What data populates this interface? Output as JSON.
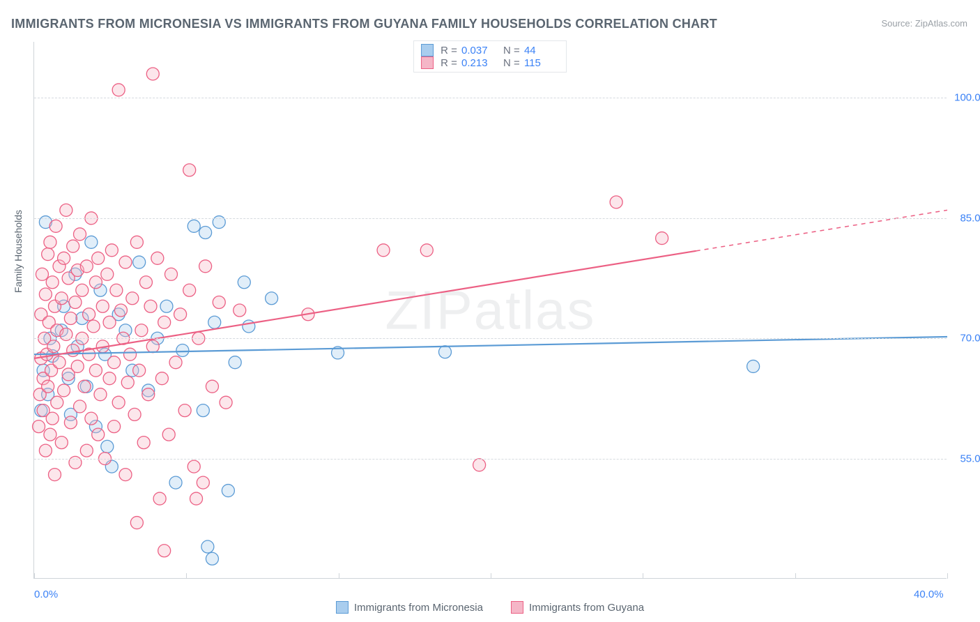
{
  "title": "IMMIGRANTS FROM MICRONESIA VS IMMIGRANTS FROM GUYANA FAMILY HOUSEHOLDS CORRELATION CHART",
  "source": "Source: ZipAtlas.com",
  "watermark": "ZIPatlas",
  "yaxis_title": "Family Households",
  "chart": {
    "type": "scatter+regression",
    "xlim": [
      0,
      40
    ],
    "ylim": [
      40,
      107
    ],
    "xticks": [
      0,
      6.67,
      13.33,
      20,
      26.67,
      33.33,
      40
    ],
    "xlabels": {
      "0": "0.0%",
      "40": "40.0%"
    },
    "yticks": [
      55,
      70,
      85,
      100
    ],
    "ylabels": {
      "55": "55.0%",
      "70": "70.0%",
      "85": "85.0%",
      "100": "100.0%"
    },
    "grid_color": "#d5dadf",
    "background_color": "#ffffff",
    "marker_radius": 9,
    "marker_fill_opacity": 0.35,
    "marker_stroke_width": 1.3,
    "line_width": 2.2,
    "series": [
      {
        "name": "Immigrants from Micronesia",
        "color": "#5b9bd5",
        "fill": "#a9cdee",
        "R": "0.037",
        "N": "44",
        "reg_start": [
          0,
          68
        ],
        "reg_end": [
          40,
          70.2
        ],
        "reg_dash_from": 40,
        "points": [
          [
            0.3,
            61
          ],
          [
            0.4,
            66
          ],
          [
            0.5,
            84.5
          ],
          [
            0.6,
            63
          ],
          [
            0.7,
            70
          ],
          [
            0.8,
            67.8
          ],
          [
            1.2,
            71
          ],
          [
            1.3,
            74
          ],
          [
            1.5,
            65
          ],
          [
            1.6,
            60.5
          ],
          [
            1.8,
            78
          ],
          [
            1.9,
            69
          ],
          [
            2.1,
            72.5
          ],
          [
            2.3,
            64
          ],
          [
            2.5,
            82
          ],
          [
            2.7,
            59
          ],
          [
            2.9,
            76
          ],
          [
            3.1,
            68
          ],
          [
            3.4,
            54
          ],
          [
            3.7,
            73
          ],
          [
            3.2,
            56.5
          ],
          [
            4.0,
            71
          ],
          [
            4.3,
            66
          ],
          [
            4.6,
            79.5
          ],
          [
            5.0,
            63.5
          ],
          [
            5.4,
            70
          ],
          [
            5.8,
            74
          ],
          [
            6.2,
            52
          ],
          [
            6.5,
            68.5
          ],
          [
            7.0,
            84
          ],
          [
            7.4,
            61
          ],
          [
            7.5,
            83.2
          ],
          [
            7.6,
            44
          ],
          [
            7.9,
            72
          ],
          [
            8.1,
            84.5
          ],
          [
            8.5,
            51
          ],
          [
            8.8,
            67
          ],
          [
            9.2,
            77
          ],
          [
            9.4,
            71.5
          ],
          [
            10.4,
            75
          ],
          [
            13.3,
            68.2
          ],
          [
            18.0,
            68.3
          ],
          [
            31.5,
            66.5
          ],
          [
            7.8,
            42.5
          ]
        ]
      },
      {
        "name": "Immigrants from Guyana",
        "color": "#ec6084",
        "fill": "#f5b6c7",
        "R": "0.213",
        "N": "115",
        "reg_start": [
          0,
          67.5
        ],
        "reg_end": [
          40,
          86
        ],
        "reg_dash_from": 29,
        "points": [
          [
            0.2,
            59
          ],
          [
            0.25,
            63
          ],
          [
            0.3,
            67.5
          ],
          [
            0.3,
            73
          ],
          [
            0.35,
            78
          ],
          [
            0.4,
            65
          ],
          [
            0.4,
            61
          ],
          [
            0.45,
            70
          ],
          [
            0.5,
            56
          ],
          [
            0.5,
            75.5
          ],
          [
            0.55,
            68
          ],
          [
            0.6,
            80.5
          ],
          [
            0.6,
            64
          ],
          [
            0.65,
            72
          ],
          [
            0.7,
            58
          ],
          [
            0.7,
            82
          ],
          [
            0.75,
            66
          ],
          [
            0.8,
            60
          ],
          [
            0.8,
            77
          ],
          [
            0.85,
            69
          ],
          [
            0.9,
            53
          ],
          [
            0.9,
            74
          ],
          [
            0.95,
            84
          ],
          [
            1.0,
            62
          ],
          [
            1.0,
            71
          ],
          [
            1.1,
            67
          ],
          [
            1.1,
            79
          ],
          [
            1.2,
            57
          ],
          [
            1.2,
            75
          ],
          [
            1.3,
            80
          ],
          [
            1.3,
            63.5
          ],
          [
            1.4,
            70.5
          ],
          [
            1.4,
            86
          ],
          [
            1.5,
            65.5
          ],
          [
            1.5,
            77.5
          ],
          [
            1.6,
            59.5
          ],
          [
            1.6,
            72.5
          ],
          [
            1.7,
            68.5
          ],
          [
            1.7,
            81.5
          ],
          [
            1.8,
            54.5
          ],
          [
            1.8,
            74.5
          ],
          [
            1.9,
            66.5
          ],
          [
            1.9,
            78.5
          ],
          [
            2.0,
            61.5
          ],
          [
            2.0,
            83
          ],
          [
            2.1,
            70
          ],
          [
            2.1,
            76
          ],
          [
            2.2,
            64
          ],
          [
            2.3,
            56
          ],
          [
            2.3,
            79
          ],
          [
            2.4,
            68
          ],
          [
            2.4,
            73
          ],
          [
            2.5,
            60
          ],
          [
            2.5,
            85
          ],
          [
            2.6,
            71.5
          ],
          [
            2.7,
            66
          ],
          [
            2.7,
            77
          ],
          [
            2.8,
            58
          ],
          [
            2.8,
            80
          ],
          [
            2.9,
            63
          ],
          [
            3.0,
            74
          ],
          [
            3.0,
            69
          ],
          [
            3.1,
            55
          ],
          [
            3.2,
            78
          ],
          [
            3.3,
            65
          ],
          [
            3.3,
            72
          ],
          [
            3.4,
            81
          ],
          [
            3.5,
            59
          ],
          [
            3.5,
            67
          ],
          [
            3.6,
            76
          ],
          [
            3.7,
            62
          ],
          [
            3.8,
            73.5
          ],
          [
            3.9,
            70
          ],
          [
            4.0,
            53
          ],
          [
            4.0,
            79.5
          ],
          [
            4.1,
            64.5
          ],
          [
            4.2,
            68
          ],
          [
            4.3,
            75
          ],
          [
            4.4,
            60.5
          ],
          [
            4.5,
            82
          ],
          [
            4.6,
            66
          ],
          [
            4.7,
            71
          ],
          [
            4.8,
            57
          ],
          [
            4.9,
            77
          ],
          [
            5.0,
            63
          ],
          [
            5.1,
            74
          ],
          [
            5.2,
            69
          ],
          [
            5.4,
            80
          ],
          [
            5.5,
            50
          ],
          [
            5.6,
            65
          ],
          [
            5.7,
            72
          ],
          [
            5.9,
            58
          ],
          [
            6.0,
            78
          ],
          [
            6.2,
            67
          ],
          [
            6.4,
            73
          ],
          [
            6.6,
            61
          ],
          [
            6.8,
            76
          ],
          [
            7.0,
            54
          ],
          [
            7.2,
            70
          ],
          [
            7.5,
            79
          ],
          [
            7.8,
            64
          ],
          [
            8.1,
            74.5
          ],
          [
            3.7,
            101
          ],
          [
            4.5,
            47
          ],
          [
            5.2,
            103
          ],
          [
            5.7,
            43.5
          ],
          [
            6.8,
            91
          ],
          [
            7.1,
            50
          ],
          [
            7.4,
            52
          ],
          [
            8.4,
            62
          ],
          [
            9.0,
            73.5
          ],
          [
            12.0,
            73
          ],
          [
            15.3,
            81
          ],
          [
            17.2,
            81
          ],
          [
            19.5,
            54.2
          ],
          [
            25.5,
            87
          ],
          [
            27.5,
            82.5
          ]
        ]
      }
    ]
  },
  "legend_bottom": [
    {
      "label": "Immigrants from Micronesia",
      "color": "#5b9bd5",
      "fill": "#a9cdee"
    },
    {
      "label": "Immigrants from Guyana",
      "color": "#ec6084",
      "fill": "#f5b6c7"
    }
  ]
}
